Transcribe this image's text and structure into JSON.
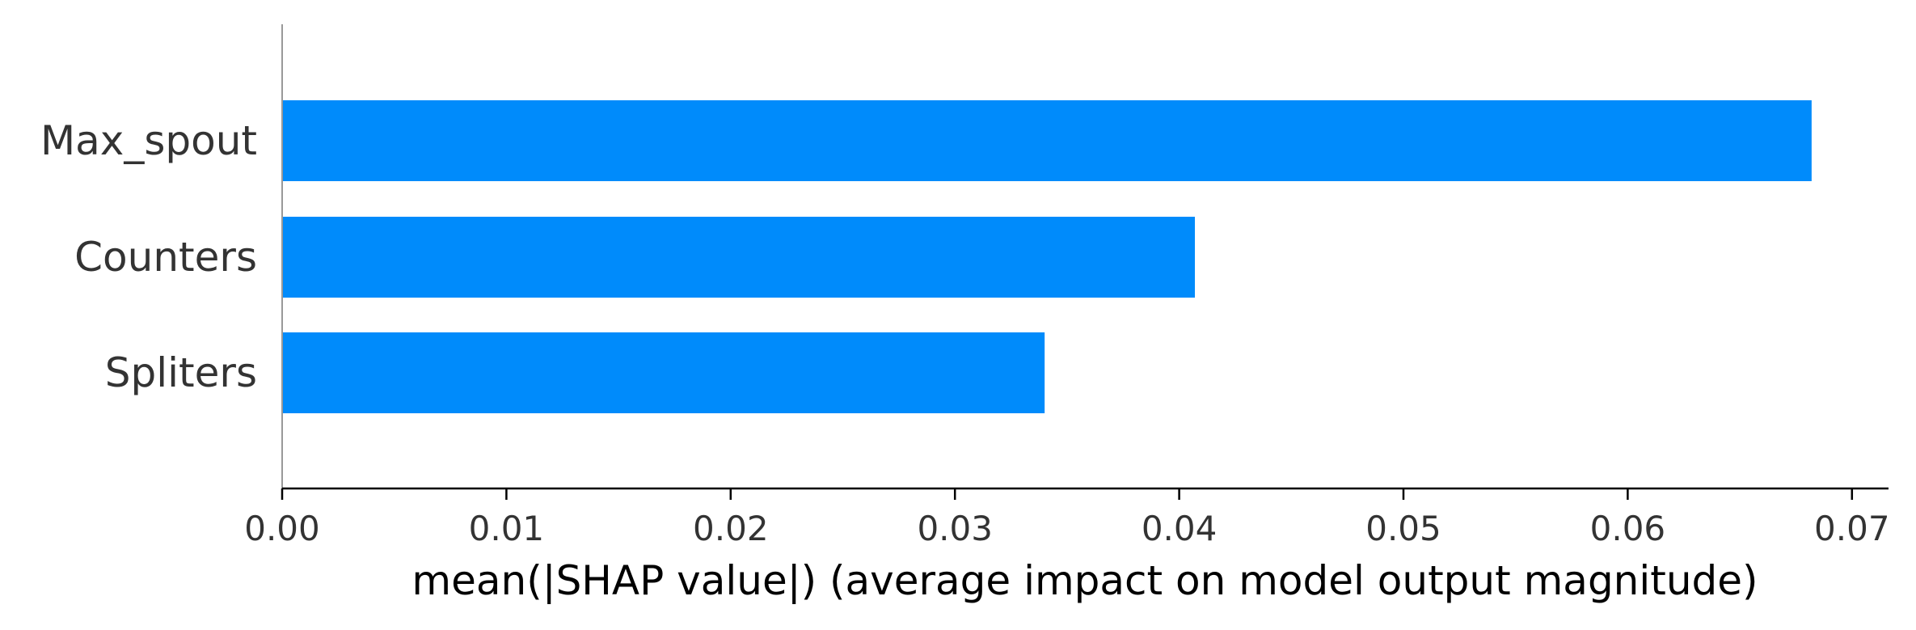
{
  "chart_data": {
    "type": "bar",
    "orientation": "horizontal",
    "categories": [
      "Max_spout",
      "Counters",
      "Spliters"
    ],
    "values": [
      0.0682,
      0.0407,
      0.034
    ],
    "xlabel": "mean(|SHAP value|) (average impact on model output magnitude)",
    "ylabel": "",
    "xlim": [
      0,
      0.0715
    ],
    "xticks": [
      0.0,
      0.01,
      0.02,
      0.03,
      0.04,
      0.05,
      0.06,
      0.07
    ],
    "xtick_labels": [
      "0.00",
      "0.01",
      "0.02",
      "0.03",
      "0.04",
      "0.05",
      "0.06",
      "0.07"
    ],
    "bar_color": "#008bfb",
    "grid": false
  }
}
